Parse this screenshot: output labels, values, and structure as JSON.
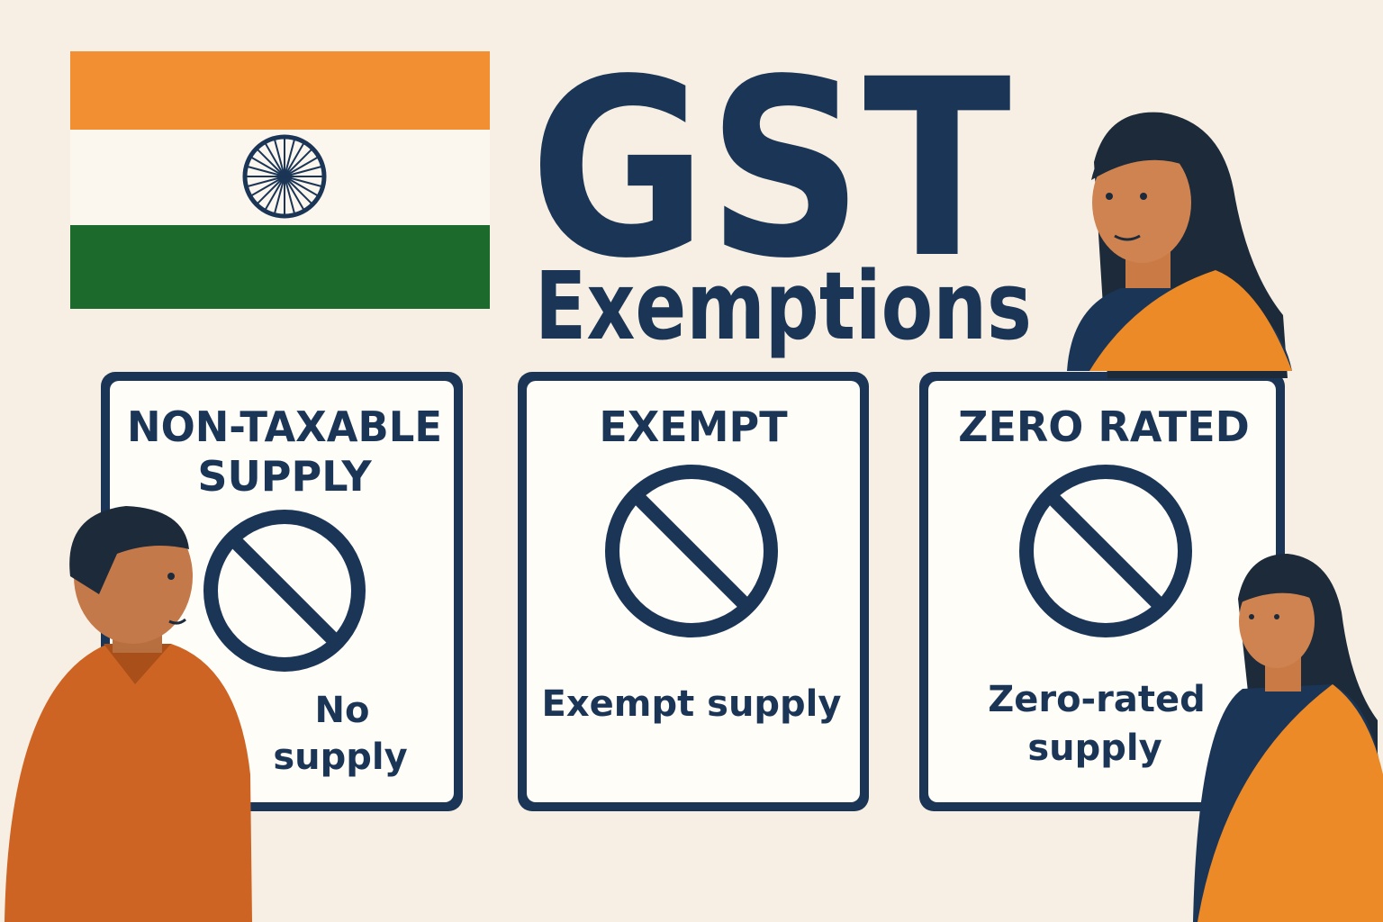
{
  "header": {
    "title": "GST",
    "subtitle": "Exemptions"
  },
  "cards": [
    {
      "title": [
        "NON-TAXABLE",
        "SUPPLY"
      ],
      "caption": [
        "No",
        "supply"
      ]
    },
    {
      "title": [
        "EXEMPT"
      ],
      "caption": [
        "Exempt supply"
      ]
    },
    {
      "title": [
        "ZERO RATED"
      ],
      "caption": [
        "Zero-rated",
        "supply"
      ]
    }
  ]
}
